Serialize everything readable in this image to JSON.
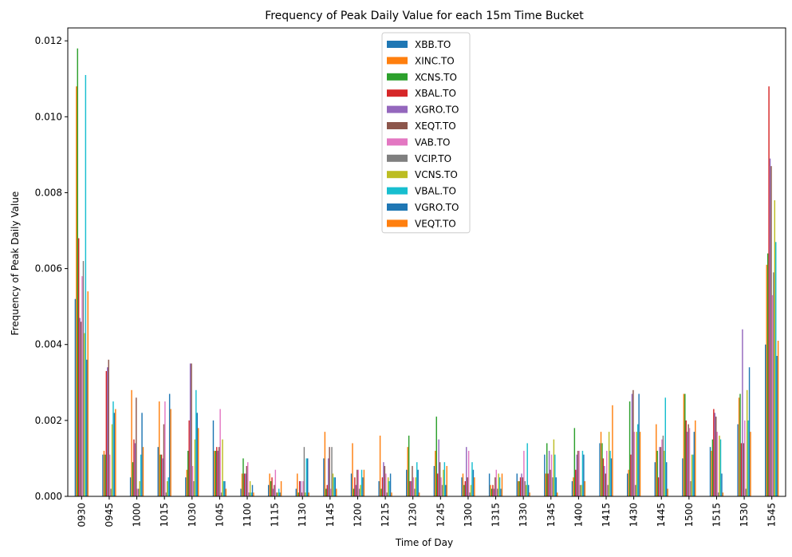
{
  "chart_data": {
    "type": "bar",
    "title": "Frequency of Peak Daily Value for each 15m Time Bucket",
    "xlabel": "Time of Day",
    "ylabel": "Frequency of Peak Daily Value",
    "ylim": [
      0,
      0.01234
    ],
    "yticks": [
      "0.000",
      "0.002",
      "0.004",
      "0.006",
      "0.008",
      "0.010",
      "0.012"
    ],
    "legend_position": "upper center",
    "grid": false,
    "categories": [
      "0930",
      "0945",
      "1000",
      "1015",
      "1030",
      "1045",
      "1100",
      "1115",
      "1130",
      "1145",
      "1200",
      "1215",
      "1230",
      "1245",
      "1300",
      "1315",
      "1330",
      "1345",
      "1400",
      "1415",
      "1430",
      "1445",
      "1500",
      "1515",
      "1530",
      "1545"
    ],
    "series": [
      {
        "name": "XBB.TO",
        "color": "#1f77b4",
        "values": [
          0.0052,
          0.0011,
          0.0005,
          0.0013,
          0.0005,
          0.002,
          0.0002,
          0.0003,
          0.0002,
          0.001,
          0.0006,
          0.0004,
          0.0007,
          0.0008,
          0.0005,
          0.0006,
          0.0006,
          0.0011,
          0.0004,
          0.0014,
          0.0006,
          0.0009,
          0.001,
          0.0013,
          0.0019,
          0.004
        ]
      },
      {
        "name": "XINC.TO",
        "color": "#ff7f0e",
        "values": [
          0.0108,
          0.0012,
          0.0028,
          0.0025,
          0.0007,
          0.0012,
          0.0006,
          0.0006,
          0.0006,
          0.0017,
          0.0014,
          0.0016,
          0.0013,
          0.0012,
          0.0006,
          0.0003,
          0.0004,
          0.0006,
          0.0005,
          0.0017,
          0.0007,
          0.0019,
          0.0027,
          0.0012,
          0.0026,
          0.0061
        ]
      },
      {
        "name": "XCNS.TO",
        "color": "#2ca02c",
        "values": [
          0.0118,
          0.0011,
          0.0009,
          0.0011,
          0.0012,
          0.0012,
          0.001,
          0.0004,
          0.0001,
          0.0002,
          0.0002,
          0.0002,
          0.0016,
          0.0021,
          0.0003,
          0.0002,
          0.0004,
          0.0014,
          0.0018,
          0.0014,
          0.0025,
          0.0012,
          0.0027,
          0.0015,
          0.0027,
          0.0064
        ]
      },
      {
        "name": "XBAL.TO",
        "color": "#d62728",
        "values": [
          0.0068,
          0.0033,
          0.0015,
          0.0011,
          0.002,
          0.0013,
          0.0006,
          0.0005,
          0.0004,
          0.0003,
          0.0005,
          0.0005,
          0.0004,
          0.0006,
          0.0004,
          0.0003,
          0.0005,
          0.0006,
          0.0007,
          0.001,
          0.0011,
          0.0005,
          0.002,
          0.0023,
          0.0014,
          0.0108
        ]
      },
      {
        "name": "XGRO.TO",
        "color": "#9467bd",
        "values": [
          0.0047,
          0.0034,
          0.0014,
          0.001,
          0.0035,
          0.0012,
          0.0006,
          0.0002,
          0.0004,
          0.001,
          0.0003,
          0.0009,
          0.0004,
          0.0015,
          0.0013,
          0.0002,
          0.0006,
          0.0012,
          0.0011,
          0.0008,
          0.0027,
          0.0013,
          0.0017,
          0.0022,
          0.0044,
          0.0089
        ]
      },
      {
        "name": "XEQT.TO",
        "color": "#8c564b",
        "values": [
          0.0046,
          0.0036,
          0.0026,
          0.0019,
          0.0035,
          0.0013,
          0.0008,
          0.0003,
          0.0001,
          0.0013,
          0.0007,
          0.0008,
          0.0008,
          0.0009,
          0.0005,
          0.0005,
          0.0005,
          0.0007,
          0.0012,
          0.0006,
          0.0028,
          0.0013,
          0.0019,
          0.0021,
          0.0014,
          0.0087
        ]
      },
      {
        "name": "VAB.TO",
        "color": "#e377c2",
        "values": [
          0.0058,
          0.0011,
          0.0002,
          0.0025,
          0.0008,
          0.0023,
          0.0009,
          0.0007,
          0.0004,
          0.0002,
          0.0007,
          0.0006,
          0.0005,
          0.0005,
          0.0012,
          0.0007,
          0.0012,
          0.0011,
          0.0012,
          0.0012,
          0.0017,
          0.0015,
          0.0018,
          0.0017,
          0.002,
          0.0053
        ]
      },
      {
        "name": "VCIP.TO",
        "color": "#7f7f7f",
        "values": [
          0.0062,
          0.0002,
          0.0002,
          0.0001,
          0.0004,
          0.0001,
          0.0001,
          0.0001,
          0.0013,
          0.0013,
          0.0002,
          0.0001,
          0.0002,
          0.0003,
          0.0001,
          0.0002,
          0.0004,
          0.0005,
          0.0003,
          0.0003,
          0.0003,
          0.0016,
          0.0004,
          0.0001,
          0.0002,
          0.0059
        ]
      },
      {
        "name": "VCNS.TO",
        "color": "#bcbd22",
        "values": [
          0.0043,
          0.0019,
          0.0004,
          0.0004,
          0.0015,
          0.0015,
          0.0004,
          0.0001,
          0.0001,
          0.0006,
          0.0003,
          0.0005,
          0.0005,
          0.0007,
          0.0003,
          0.0006,
          0.0003,
          0.0015,
          0.0003,
          0.0017,
          0.0017,
          0.0012,
          0.0011,
          0.0016,
          0.0028,
          0.0078
        ]
      },
      {
        "name": "VBAL.TO",
        "color": "#17becf",
        "values": [
          0.0111,
          0.0025,
          0.0011,
          0.0005,
          0.0028,
          0.0004,
          0.0001,
          0.0002,
          0.001,
          0.0005,
          0.0007,
          0.0004,
          0.0009,
          0.0009,
          0.0009,
          0.0005,
          0.0014,
          0.0011,
          0.0012,
          0.0012,
          0.0019,
          0.0026,
          0.0011,
          0.0015,
          0.002,
          0.0067
        ]
      },
      {
        "name": "VGRO.TO",
        "color": "#1f77b4",
        "values": [
          0.0036,
          0.0022,
          0.0022,
          0.0027,
          0.0022,
          0.0004,
          0.0003,
          0.0001,
          0.001,
          0.0005,
          0.0005,
          0.0006,
          0.0007,
          0.0003,
          0.0007,
          0.0002,
          0.0003,
          0.0005,
          0.0011,
          0.001,
          0.0027,
          0.0009,
          0.0017,
          0.0006,
          0.0034,
          0.0037
        ]
      },
      {
        "name": "VEQT.TO",
        "color": "#ff7f0e",
        "values": [
          0.0054,
          0.0023,
          0.0013,
          0.0023,
          0.0018,
          0.0002,
          0.0001,
          0.0004,
          0.0001,
          0.0002,
          0.0007,
          0.0001,
          0.0001,
          0.0008,
          0.0005,
          0.0006,
          0.0001,
          0.0001,
          0.0004,
          0.0024,
          0.0017,
          0.0002,
          0.002,
          0.0001,
          0.0017,
          0.0041
        ]
      }
    ]
  }
}
